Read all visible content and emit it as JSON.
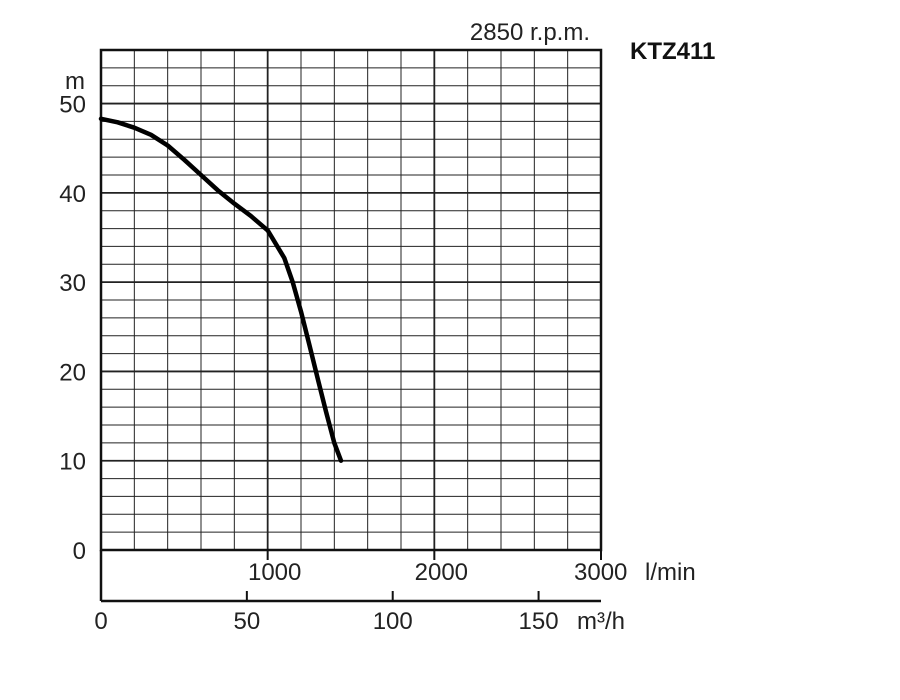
{
  "chart_data": {
    "type": "line",
    "title": "KTZ411",
    "subtitle": "2850 r.p.m.",
    "ylabel": "m",
    "ylim": [
      0,
      56
    ],
    "yticks": [
      0,
      10,
      20,
      30,
      40,
      50
    ],
    "xlim_lmin": [
      0,
      3000
    ],
    "xticks_lmin": [
      1000,
      2000,
      3000
    ],
    "xunit_lmin": "l/min",
    "xlim_m3h": [
      0,
      171.4
    ],
    "xticks_m3h": [
      0,
      50,
      100,
      150
    ],
    "xunit_m3h": "m³/h",
    "grid": true,
    "series": [
      {
        "x": [
          0,
          100,
          200,
          300,
          400,
          500,
          600,
          700,
          800,
          900,
          1000,
          1100,
          1150,
          1200,
          1250,
          1300,
          1350,
          1400,
          1440
        ],
        "y": [
          48.3,
          47.9,
          47.3,
          46.5,
          45.3,
          43.7,
          42.0,
          40.3,
          38.8,
          37.4,
          35.8,
          32.7,
          30.0,
          26.7,
          23.0,
          19.2,
          15.5,
          12.0,
          10.0
        ]
      }
    ]
  }
}
